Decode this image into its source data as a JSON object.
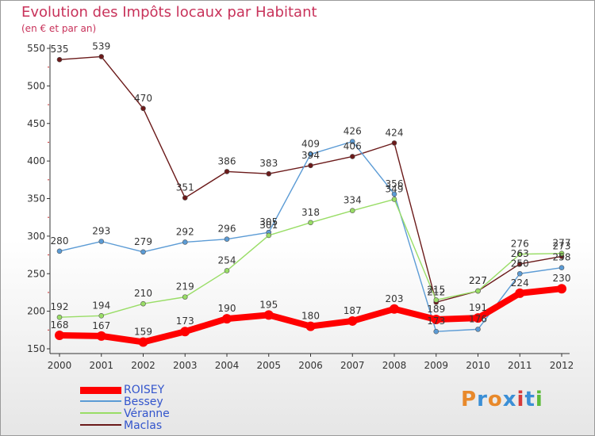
{
  "header": {
    "title": "Evolution des Impôts locaux par Habitant",
    "subtitle": "(en € et par an)"
  },
  "logo": {
    "text": "Proxiti",
    "colors": [
      "#e8892b",
      "#3b8fd6",
      "#e8892b",
      "#3b8fd6",
      "#d63b3b",
      "#3b8fd6",
      "#5dbb3b"
    ]
  },
  "chart_data": {
    "type": "line",
    "x": [
      "2000",
      "2001",
      "2002",
      "2003",
      "2004",
      "2005",
      "2006",
      "2007",
      "2008",
      "2009",
      "2010",
      "2011",
      "2012"
    ],
    "ylim": [
      150,
      550
    ],
    "yticks": [
      "150",
      "200",
      "250",
      "300",
      "350",
      "400",
      "450",
      "500",
      "550"
    ],
    "grid": false,
    "legend_position": "bottom-left",
    "series": [
      {
        "name": "ROISEY",
        "color": "#ff0000",
        "values": [
          168,
          167,
          159,
          173,
          190,
          195,
          180,
          187,
          203,
          189,
          191,
          224,
          230
        ],
        "labels": [
          "168",
          "167",
          "159",
          "173",
          "190",
          "195",
          "180",
          "187",
          "203",
          "189",
          "191",
          "224",
          "230"
        ]
      },
      {
        "name": "Bessey",
        "color": "#5b9bd5",
        "values": [
          280,
          293,
          279,
          292,
          296,
          305,
          409,
          426,
          356,
          173,
          176,
          250,
          258
        ],
        "labels": [
          "280",
          "293",
          "279",
          "292",
          "296",
          "305",
          "409",
          "426",
          "356",
          "173",
          "176",
          "250",
          "258"
        ]
      },
      {
        "name": "Véranne",
        "color": "#99dd66",
        "values": [
          192,
          194,
          210,
          219,
          254,
          301,
          318,
          334,
          349,
          215,
          227,
          276,
          277
        ],
        "labels": [
          "192",
          "194",
          "210",
          "219",
          "254",
          "301",
          "318",
          "334",
          "349",
          "215",
          "227",
          "276",
          "277"
        ]
      },
      {
        "name": "Maclas",
        "color": "#6b1a1a",
        "values": [
          535,
          539,
          470,
          351,
          386,
          383,
          394,
          406,
          424,
          212,
          227,
          263,
          273
        ],
        "labels": [
          "535",
          "539",
          "470",
          "351",
          "386",
          "383",
          "394",
          "406",
          "424",
          "212",
          "227",
          "263",
          "273"
        ]
      }
    ]
  }
}
